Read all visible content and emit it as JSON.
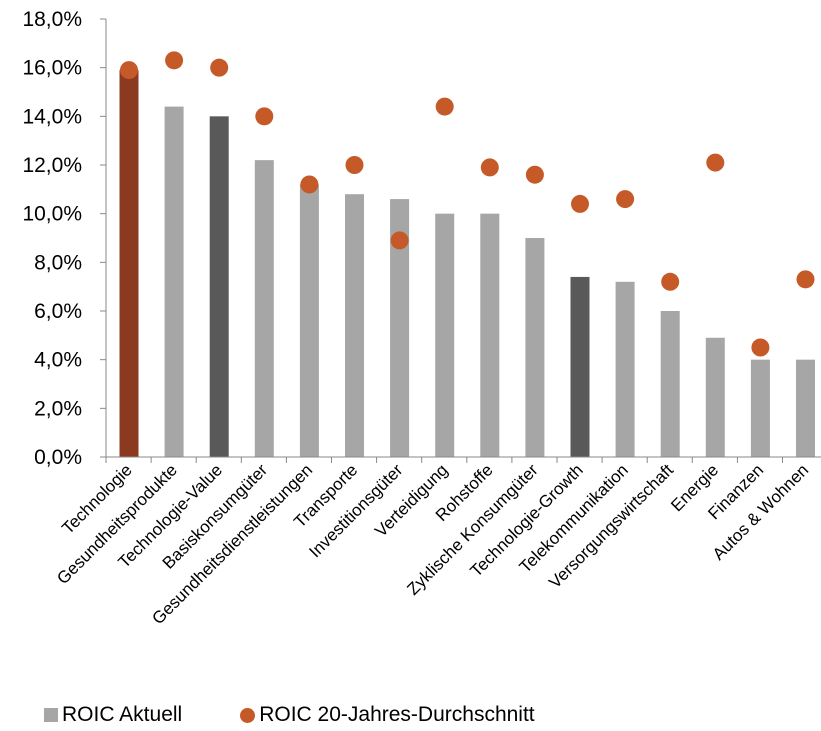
{
  "chart_data": {
    "type": "bar",
    "categories": [
      "Technologie",
      "Gesundheitsprodukte",
      "Technologie-Value",
      "Basiskonsumgüter",
      "Gesundheitsdienstleistungen",
      "Transporte",
      "Investitionsgüter",
      "Verteidigung",
      "Rohstoffe",
      "Zyklische Konsumgüter",
      "Technologie-Growth",
      "Telekommunikation",
      "Versorgungswirtschaft",
      "Energie",
      "Finanzen",
      "Autos & Wohnen"
    ],
    "series": [
      {
        "name": "ROIC Aktuell",
        "kind": "bar",
        "values": [
          15.9,
          14.4,
          14.0,
          12.2,
          11.2,
          10.8,
          10.6,
          10.0,
          10.0,
          9.0,
          7.4,
          7.2,
          6.0,
          4.9,
          4.0,
          4.0
        ]
      },
      {
        "name": "ROIC 20-Jahres-Durchschnitt",
        "kind": "scatter",
        "values": [
          15.9,
          16.3,
          16.0,
          14.0,
          11.2,
          12.0,
          8.9,
          14.4,
          11.9,
          11.6,
          10.4,
          10.6,
          7.2,
          12.1,
          4.5,
          7.3
        ]
      }
    ],
    "bar_colors": [
      "#8b3a1f",
      "#a6a6a6",
      "#595959",
      "#a6a6a6",
      "#a6a6a6",
      "#a6a6a6",
      "#a6a6a6",
      "#a6a6a6",
      "#a6a6a6",
      "#a6a6a6",
      "#595959",
      "#a6a6a6",
      "#a6a6a6",
      "#a6a6a6",
      "#a6a6a6",
      "#a6a6a6"
    ],
    "marker_color": "#c55a28",
    "ylim": [
      0,
      18
    ],
    "yticks": [
      0,
      2,
      4,
      6,
      8,
      10,
      12,
      14,
      16,
      18
    ],
    "ytick_labels": [
      "0,0%",
      "2,0%",
      "4,0%",
      "6,0%",
      "8,0%",
      "10,0%",
      "12,0%",
      "14,0%",
      "16,0%",
      "18,0%"
    ],
    "grid": false,
    "legend_position": "bottom"
  },
  "legend": {
    "bar_label": "ROIC Aktuell",
    "dot_label": "ROIC 20-Jahres-Durchschnitt"
  }
}
